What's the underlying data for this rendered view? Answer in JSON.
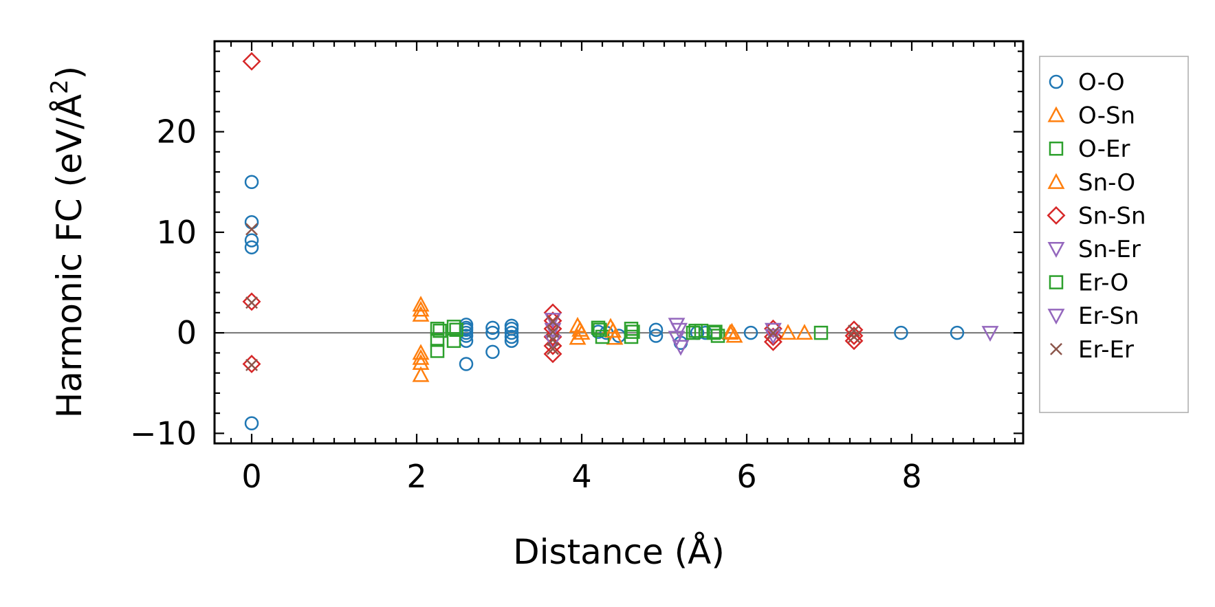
{
  "chart_data": {
    "type": "scatter",
    "xlabel": "Distance (Å)",
    "ylabel_main": "Harmonic FC (eV/Å",
    "ylabel_sup": "2",
    "ylabel_close": ")",
    "xlim": [
      -0.45,
      9.35
    ],
    "ylim": [
      -11,
      29
    ],
    "xticks": [
      0,
      2,
      4,
      6,
      8
    ],
    "yticks": [
      -10,
      0,
      10,
      20
    ],
    "xtick_labels": [
      "0",
      "2",
      "4",
      "6",
      "8"
    ],
    "ytick_labels": [
      "−10",
      "0",
      "10",
      "20"
    ],
    "hline": 0,
    "legend_position": "right, outside",
    "series": [
      {
        "name": "O-O",
        "marker": "circle",
        "color": "#1f77b4",
        "points": [
          [
            0,
            15
          ],
          [
            0,
            11
          ],
          [
            0,
            9.2
          ],
          [
            0,
            8.5
          ],
          [
            0,
            -9
          ],
          [
            2.6,
            0.8
          ],
          [
            2.6,
            0.5
          ],
          [
            2.6,
            0.3
          ],
          [
            2.6,
            0
          ],
          [
            2.6,
            -0.3
          ],
          [
            2.6,
            -0.8
          ],
          [
            2.6,
            -3.1
          ],
          [
            2.92,
            0.5
          ],
          [
            2.92,
            0
          ],
          [
            2.92,
            -1.9
          ],
          [
            3.15,
            0.7
          ],
          [
            3.15,
            0.4
          ],
          [
            3.15,
            0
          ],
          [
            3.15,
            -0.4
          ],
          [
            3.15,
            -0.8
          ],
          [
            4.2,
            0.1
          ],
          [
            4.3,
            0
          ],
          [
            4.45,
            -0.3
          ],
          [
            4.9,
            0.3
          ],
          [
            4.9,
            -0.3
          ],
          [
            5.2,
            -1
          ],
          [
            5.4,
            0
          ],
          [
            5.5,
            0
          ],
          [
            6.05,
            0
          ],
          [
            7.87,
            0
          ],
          [
            8.55,
            0
          ]
        ]
      },
      {
        "name": "O-Sn",
        "marker": "triangle-up",
        "color": "#ff7f0e",
        "points": [
          [
            2.05,
            2.8
          ],
          [
            2.05,
            1.8
          ],
          [
            2.05,
            -2
          ],
          [
            2.05,
            -3
          ],
          [
            2.05,
            -4.2
          ],
          [
            3.95,
            0.7
          ],
          [
            3.95,
            -0.5
          ],
          [
            4.0,
            0
          ],
          [
            4.35,
            0.6
          ],
          [
            4.4,
            -0.5
          ],
          [
            5.8,
            0
          ],
          [
            5.85,
            -0.3
          ],
          [
            6.5,
            0
          ],
          [
            6.7,
            0
          ]
        ]
      },
      {
        "name": "O-Er",
        "marker": "square",
        "color": "#2ca02c",
        "points": [
          [
            2.25,
            0.4
          ],
          [
            2.25,
            -0.7
          ],
          [
            2.25,
            -1.8
          ],
          [
            2.45,
            0.6
          ],
          [
            2.45,
            -0.8
          ],
          [
            4.2,
            0.5
          ],
          [
            4.25,
            -0.4
          ],
          [
            4.6,
            0.4
          ],
          [
            4.6,
            -0.4
          ],
          [
            5.35,
            0
          ],
          [
            5.45,
            0.2
          ],
          [
            5.6,
            0
          ],
          [
            5.65,
            -0.3
          ],
          [
            6.9,
            0
          ]
        ]
      },
      {
        "name": "Sn-O",
        "marker": "triangle-up",
        "color": "#ff7f0e",
        "points": [
          [
            2.05,
            2.3
          ],
          [
            2.05,
            -2.5
          ],
          [
            3.98,
            0.3
          ],
          [
            4.38,
            0.2
          ],
          [
            5.82,
            0.1
          ]
        ]
      },
      {
        "name": "Sn-Sn",
        "marker": "diamond",
        "color": "#d62728",
        "points": [
          [
            0,
            27
          ],
          [
            0,
            3.1
          ],
          [
            0,
            -3.1
          ],
          [
            3.65,
            2
          ],
          [
            3.65,
            1.2
          ],
          [
            3.65,
            0.4
          ],
          [
            3.65,
            -0.4
          ],
          [
            3.65,
            -1.3
          ],
          [
            3.65,
            -2.1
          ],
          [
            6.32,
            0.4
          ],
          [
            6.32,
            -0.4
          ],
          [
            6.32,
            -0.9
          ],
          [
            7.3,
            0.3
          ],
          [
            7.3,
            -0.3
          ],
          [
            7.3,
            -0.8
          ]
        ]
      },
      {
        "name": "Sn-Er",
        "marker": "triangle-down",
        "color": "#9467bd",
        "points": [
          [
            3.65,
            1.3
          ],
          [
            3.65,
            0.3
          ],
          [
            5.15,
            0.8
          ],
          [
            5.15,
            -0.5
          ],
          [
            5.2,
            -1.4
          ],
          [
            6.32,
            0.3
          ],
          [
            8.95,
            0
          ]
        ]
      },
      {
        "name": "Er-O",
        "marker": "square",
        "color": "#2ca02c",
        "points": [
          [
            2.28,
            0.2
          ],
          [
            2.48,
            0.3
          ],
          [
            4.22,
            0.3
          ],
          [
            4.62,
            0.1
          ],
          [
            5.38,
            0.2
          ],
          [
            5.62,
            0.1
          ]
        ]
      },
      {
        "name": "Er-Sn",
        "marker": "triangle-down",
        "color": "#9467bd",
        "points": [
          [
            3.65,
            -0.9
          ],
          [
            5.18,
            0.3
          ],
          [
            6.32,
            -0.3
          ]
        ]
      },
      {
        "name": "Er-Er",
        "marker": "x",
        "color": "#8c564b",
        "points": [
          [
            0,
            10.3
          ],
          [
            0,
            3
          ],
          [
            0,
            -3.2
          ],
          [
            3.65,
            1.1
          ],
          [
            3.65,
            0.1
          ],
          [
            3.65,
            -0.7
          ],
          [
            3.65,
            -1.6
          ],
          [
            6.32,
            0
          ],
          [
            7.3,
            0.2
          ],
          [
            7.3,
            -0.4
          ]
        ]
      }
    ]
  }
}
